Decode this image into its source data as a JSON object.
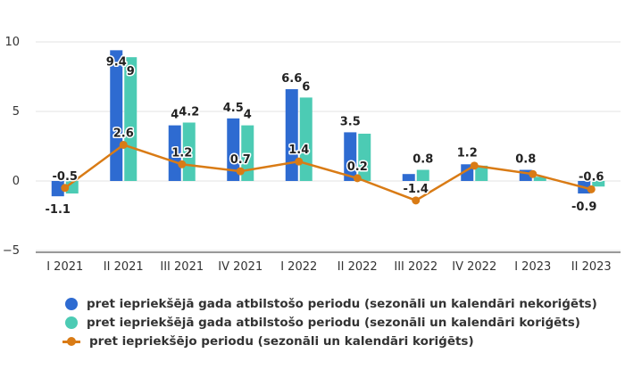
{
  "chart_data": {
    "type": "bar",
    "categories": [
      "I 2021",
      "II 2021",
      "III 2021",
      "IV 2021",
      "I 2022",
      "II 2022",
      "III 2022",
      "IV 2022",
      "I 2023",
      "II 2023"
    ],
    "series": [
      {
        "name": "pret iepriekšējā gada atbilstošo periodu (sezonāli un kalendāri nekoriģēts)",
        "type": "bar",
        "color": "#2e6bd1",
        "values": [
          -1.1,
          9.4,
          4,
          4.5,
          6.6,
          3.5,
          0.5,
          1.2,
          0.8,
          -0.9
        ],
        "labels": [
          "-1.1",
          "9.4",
          "4",
          "4.5",
          "6.6",
          "3.5",
          "",
          "1.2",
          "0.8",
          "-0.9"
        ]
      },
      {
        "name": "pret iepriekšējā gada atbilstošo periodu (sezonāli un kalendāri koriģēts)",
        "type": "bar",
        "color": "#4ccbb4",
        "values": [
          -0.9,
          8.9,
          4.2,
          4,
          6,
          3.4,
          0.8,
          1.1,
          0.3,
          -0.4
        ],
        "labels": [
          "",
          "9",
          "4.2",
          "4",
          "6",
          "",
          "0.8",
          "",
          "",
          ""
        ]
      },
      {
        "name": "pret iepriekšējo periodu (sezonāli un kalendāri koriģēts)",
        "type": "line",
        "color": "#d97b15",
        "values": [
          -0.5,
          2.6,
          1.2,
          0.7,
          1.4,
          0.2,
          -1.4,
          1.1,
          0.5,
          -0.6
        ],
        "labels": [
          "-0.5",
          "2.6",
          "1.2",
          "0.7",
          "1.4",
          "0.2",
          "-1.4",
          "",
          "",
          "-0.6"
        ]
      }
    ],
    "yticks": [
      "−5",
      "0",
      "5",
      "10"
    ],
    "ylim": [
      -5,
      10
    ],
    "grid": true,
    "legend_position": "bottom"
  }
}
